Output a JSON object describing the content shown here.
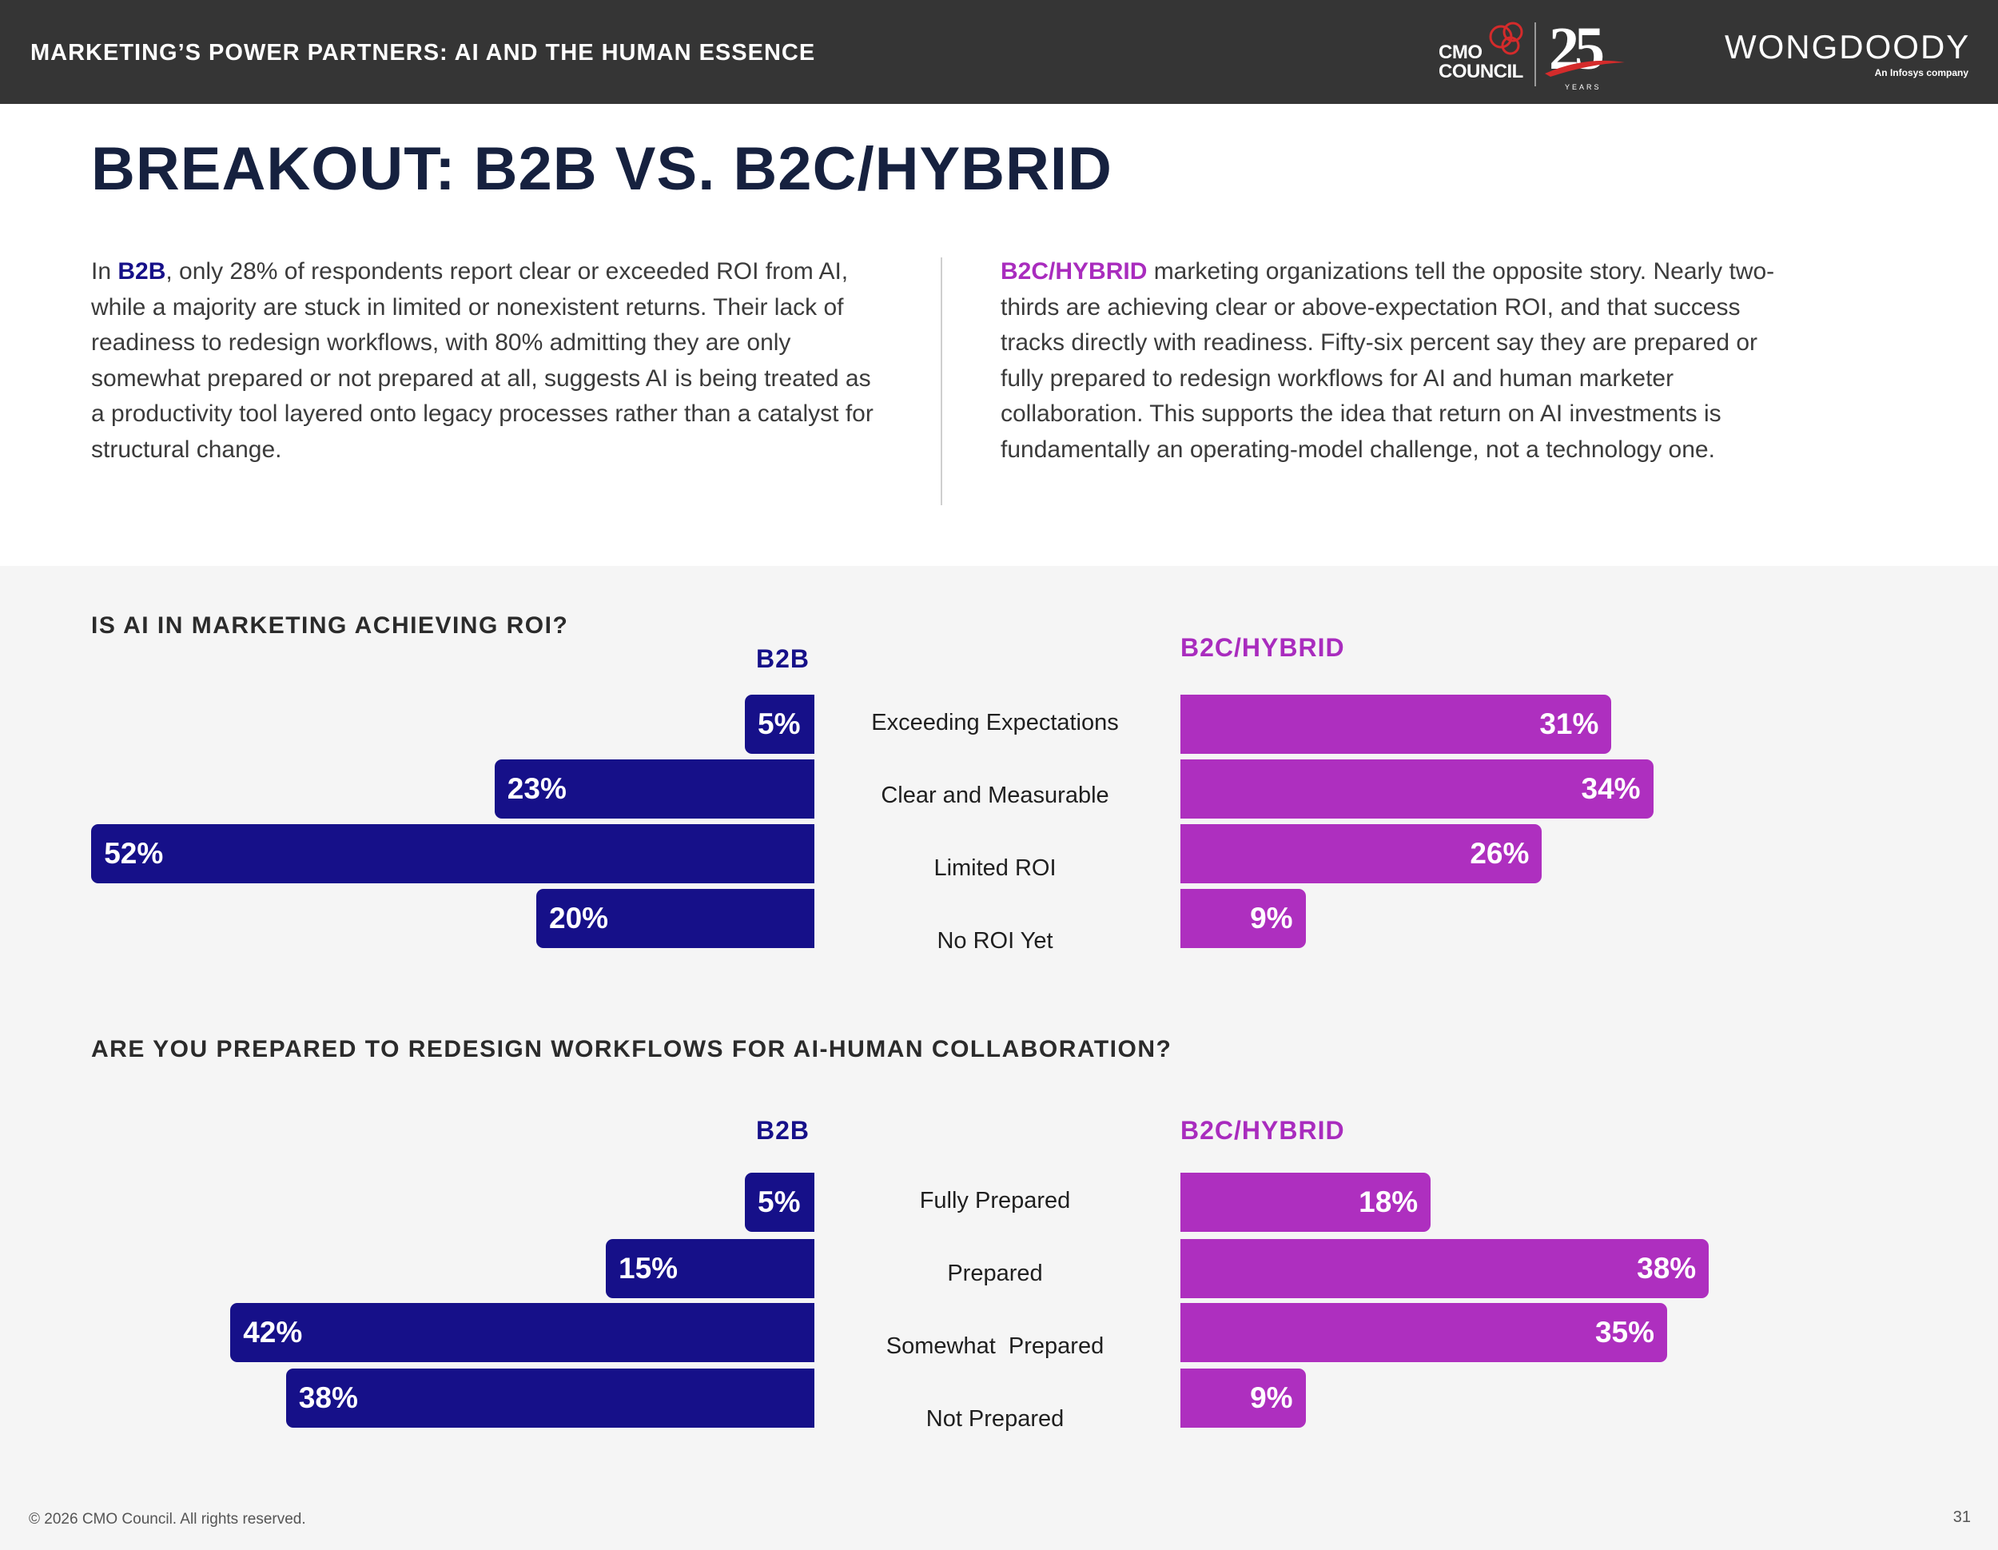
{
  "header": {
    "title": "MARKETING’S POWER PARTNERS: AI AND THE HUMAN ESSENCE",
    "cmo_logo": {
      "line1": "CMO",
      "line2": "COUNCIL",
      "anniversary": "25",
      "years": "YEARS"
    },
    "wongdoody_logo": {
      "name": "WONGDOODY",
      "tagline": "An Infosys company"
    }
  },
  "page_title": "BREAKOUT: B2B VS. B2C/HYBRID",
  "left_paragraph": {
    "before": "In ",
    "highlight": "B2B",
    "after": ", only 28% of respondents report clear or exceeded ROI from AI, while a majority are stuck in limited or nonexistent returns. Their lack of readiness to redesign workflows, with 80% admitting they are only somewhat prepared or not prepared at all, suggests AI is being treated as a productivity tool layered onto legacy processes rather than a catalyst for structural change."
  },
  "right_paragraph": {
    "highlight": "B2C/HYBRID",
    "after": " marketing organizations tell the opposite story. Nearly two-thirds are achieving clear or above-expectation ROI, and that success tracks directly with readiness. Fifty-six percent say they are prepared or fully prepared to redesign workflows for AI and human marketer collaboration. This supports the idea that return on AI investments is fundamentally an operating-model challenge, not a technology one."
  },
  "colors": {
    "b2b": "#161089",
    "b2c": "#ae2fbf",
    "title": "#16213f",
    "topbar": "#353535",
    "section_bg": "#f5f5f5"
  },
  "chart_data": [
    {
      "type": "bar",
      "title": "IS AI IN MARKETING ACHIEVING ROI?",
      "categories": [
        "Exceeding Expectations",
        "Clear and Measurable",
        "Limited ROI",
        "No ROI Yet"
      ],
      "series": [
        {
          "name": "B2B",
          "values": [
            5,
            23,
            52,
            20
          ],
          "labels": [
            "5%",
            "23%",
            "52%",
            "20%"
          ]
        },
        {
          "name": "B2C/HYBRID",
          "values": [
            31,
            34,
            26,
            9
          ],
          "labels": [
            "31%",
            "34%",
            "26%",
            "9%"
          ]
        }
      ],
      "unit": "%",
      "orientation": "horizontal-butterfly",
      "legend": "column headers"
    },
    {
      "type": "bar",
      "title": "ARE YOU PREPARED TO REDESIGN WORKFLOWS FOR AI-HUMAN COLLABORATION?",
      "categories": [
        "Fully Prepared",
        "Prepared",
        "Somewhat  Prepared",
        "Not Prepared"
      ],
      "series": [
        {
          "name": "B2B",
          "values": [
            5,
            15,
            42,
            38
          ],
          "labels": [
            "5%",
            "15%",
            "42%",
            "38%"
          ]
        },
        {
          "name": "B2C/HYBRID",
          "values": [
            18,
            38,
            35,
            9
          ],
          "labels": [
            "18%",
            "38%",
            "35%",
            "9%"
          ]
        }
      ],
      "unit": "%",
      "orientation": "horizontal-butterfly",
      "legend": "column headers"
    }
  ],
  "footer": {
    "copyright": "© 2026 CMO Council. All rights reserved.",
    "page_number": "31"
  }
}
